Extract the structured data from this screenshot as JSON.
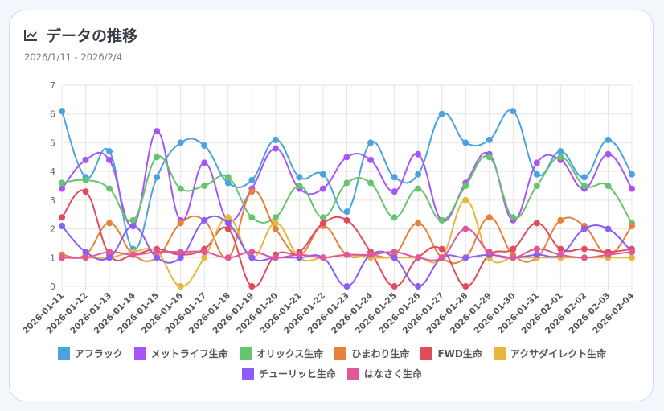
{
  "card": {
    "title": "データの推移",
    "title_icon": "line-chart-icon",
    "subtitle": "2026/1/11 - 2026/2/4"
  },
  "chart_data": {
    "type": "line",
    "ylim": [
      0,
      7
    ],
    "yticks": [
      "0",
      "1",
      "2",
      "3",
      "4",
      "5",
      "6",
      "7"
    ],
    "grid": true,
    "legend_position": "bottom",
    "categories": [
      "2026-01-11",
      "2026-01-12",
      "2026-01-13",
      "2026-01-14",
      "2026-01-15",
      "2026-01-16",
      "2026-01-17",
      "2026-01-18",
      "2026-01-19",
      "2026-01-20",
      "2026-01-21",
      "2026-01-22",
      "2026-01-23",
      "2026-01-24",
      "2026-01-25",
      "2026-01-26",
      "2026-01-27",
      "2026-01-28",
      "2026-01-29",
      "2026-01-30",
      "2026-01-31",
      "2026-02-01",
      "2026-02-02",
      "2026-02-03",
      "2026-02-04"
    ],
    "series": [
      {
        "name": "アフラック",
        "color": "#4aa3df",
        "values": [
          6.1,
          3.8,
          4.7,
          1.3,
          3.8,
          5.0,
          4.9,
          3.6,
          3.7,
          5.1,
          3.8,
          3.9,
          2.6,
          5.0,
          3.8,
          3.9,
          6.0,
          5.0,
          5.1,
          6.1,
          3.9,
          4.7,
          3.8,
          5.1,
          3.9
        ]
      },
      {
        "name": "メットライフ生命",
        "color": "#a855f7",
        "values": [
          3.4,
          4.4,
          4.4,
          2.1,
          5.4,
          2.3,
          4.3,
          2.3,
          3.4,
          4.8,
          3.4,
          3.4,
          4.5,
          4.4,
          3.3,
          4.6,
          2.3,
          3.6,
          4.6,
          2.3,
          4.3,
          4.4,
          3.4,
          4.6,
          3.4
        ]
      },
      {
        "name": "オリックス生命",
        "color": "#66c46e",
        "values": [
          3.6,
          3.7,
          3.4,
          2.3,
          4.5,
          3.4,
          3.5,
          3.8,
          2.4,
          2.4,
          3.5,
          2.4,
          3.6,
          3.6,
          2.4,
          3.4,
          2.3,
          3.5,
          4.5,
          2.4,
          3.5,
          4.5,
          3.5,
          3.5,
          2.2
        ]
      },
      {
        "name": "ひまわり生命",
        "color": "#e8803a",
        "values": [
          1.1,
          1.1,
          2.2,
          1.1,
          1.0,
          2.2,
          2.3,
          1.0,
          3.3,
          2.0,
          1.1,
          2.1,
          1.1,
          1.1,
          1.1,
          2.2,
          1.0,
          1.0,
          2.4,
          1.1,
          1.0,
          2.3,
          2.1,
          1.1,
          2.1
        ]
      },
      {
        "name": "FWD生命",
        "color": "#e04c5c",
        "values": [
          2.4,
          3.3,
          1.1,
          1.1,
          1.3,
          1.1,
          1.3,
          2.0,
          0,
          1.1,
          1.2,
          2.2,
          2.3,
          1.2,
          0,
          1.0,
          1.3,
          0,
          1.1,
          1.3,
          2.2,
          1.3,
          1.3,
          1.2,
          1.3
        ]
      },
      {
        "name": "アクサダイレクト生命",
        "color": "#e6b73e",
        "values": [
          1.0,
          1.0,
          1.0,
          1.2,
          1.2,
          0,
          1.0,
          2.4,
          1.0,
          2.2,
          1.0,
          1.0,
          1.1,
          1.0,
          1.0,
          1.0,
          1.0,
          3.0,
          1.0,
          1.0,
          1.0,
          1.0,
          1.0,
          1.0,
          1.0
        ]
      },
      {
        "name": "チューリッヒ生命",
        "color": "#8b5cf6",
        "values": [
          2.1,
          1.2,
          1.0,
          2.1,
          1.0,
          1.0,
          2.3,
          2.2,
          1.0,
          1.0,
          1.0,
          1.0,
          0,
          1.1,
          1.0,
          0,
          1.0,
          1.0,
          1.1,
          1.0,
          1.1,
          1.1,
          2.0,
          2.0,
          1.2
        ]
      },
      {
        "name": "はなさく生命",
        "color": "#e0579a",
        "values": [
          1.0,
          1.0,
          1.2,
          1.1,
          1.2,
          1.2,
          1.2,
          1.0,
          1.2,
          1.0,
          1.1,
          1.0,
          1.1,
          1.1,
          1.2,
          1.0,
          1.0,
          2.0,
          1.2,
          1.0,
          1.3,
          1.1,
          1.0,
          1.1,
          1.2
        ]
      }
    ]
  }
}
